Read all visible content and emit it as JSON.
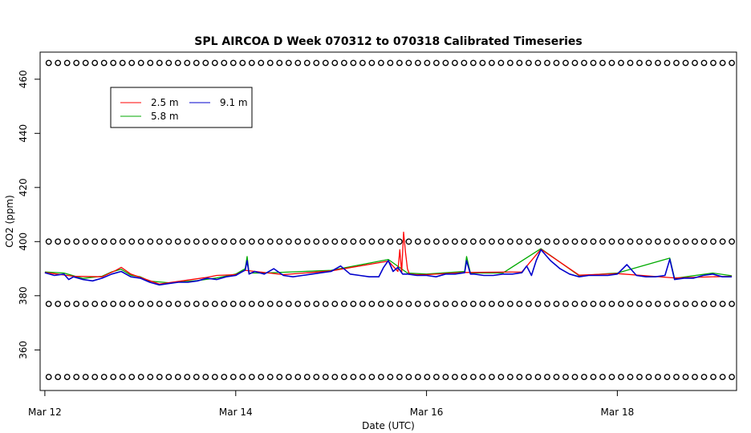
{
  "chart_data": {
    "type": "line",
    "title": "SPL AIRCOA D  Week 070312 to 070318  Calibrated Timeseries",
    "xlabel": "Date (UTC)",
    "ylabel": "CO2 (ppm)",
    "x_unit": "days",
    "xlim": [
      -0.05,
      7.25
    ],
    "ylim": [
      345,
      470
    ],
    "x_ticks": [
      {
        "value": 0,
        "label": "Mar 12"
      },
      {
        "value": 2,
        "label": "Mar 14"
      },
      {
        "value": 4,
        "label": "Mar 16"
      },
      {
        "value": 6,
        "label": "Mar 18"
      }
    ],
    "y_ticks": [
      {
        "value": 360,
        "label": "360"
      },
      {
        "value": 380,
        "label": "380"
      },
      {
        "value": 400,
        "label": "400"
      },
      {
        "value": 420,
        "label": "420"
      },
      {
        "value": 440,
        "label": "440"
      },
      {
        "value": 460,
        "label": "460"
      }
    ],
    "legend": {
      "position": "top-left",
      "entries": [
        {
          "label": "2.5 m",
          "color": "#ff0000"
        },
        {
          "label": "5.8 m",
          "color": "#00aa00"
        },
        {
          "label": "9.1 m",
          "color": "#0000cc"
        }
      ]
    },
    "reference_markers": {
      "marker": "open-circle",
      "levels": [
        350,
        377,
        400,
        466
      ],
      "x_start": 0.04,
      "x_end": 7.2,
      "count": 75
    },
    "series": [
      {
        "name": "9.1 m",
        "color": "#0000cc",
        "x": [
          0.0,
          0.1,
          0.2,
          0.25,
          0.3,
          0.4,
          0.5,
          0.6,
          0.7,
          0.8,
          0.9,
          1.0,
          1.1,
          1.2,
          1.3,
          1.4,
          1.5,
          1.6,
          1.7,
          1.8,
          1.9,
          2.0,
          2.05,
          2.1,
          2.12,
          2.14,
          2.2,
          2.3,
          2.4,
          2.5,
          2.6,
          2.7,
          2.8,
          2.9,
          3.0,
          3.1,
          3.2,
          3.3,
          3.4,
          3.5,
          3.55,
          3.6,
          3.65,
          3.7,
          3.75,
          3.8,
          3.9,
          4.0,
          4.1,
          4.2,
          4.3,
          4.4,
          4.42,
          4.46,
          4.5,
          4.6,
          4.7,
          4.8,
          4.9,
          5.0,
          5.05,
          5.1,
          5.15,
          5.2,
          5.3,
          5.4,
          5.5,
          5.6,
          5.7,
          5.8,
          5.9,
          6.0,
          6.1,
          6.2,
          6.3,
          6.4,
          6.5,
          6.55,
          6.6,
          6.7,
          6.8,
          6.9,
          7.0,
          7.1,
          7.2
        ],
        "values": [
          388.5,
          387.5,
          388.0,
          386.0,
          387.0,
          386.0,
          385.5,
          386.5,
          388.0,
          389.0,
          387.0,
          386.5,
          385.0,
          384.0,
          384.5,
          385.0,
          385.0,
          385.5,
          386.5,
          386.0,
          387.0,
          387.5,
          388.5,
          389.5,
          393.0,
          388.0,
          389.0,
          388.0,
          390.0,
          387.5,
          387.0,
          387.5,
          388.0,
          388.5,
          389.0,
          391.0,
          388.0,
          387.5,
          387.0,
          387.0,
          390.5,
          393.0,
          389.0,
          390.5,
          388.0,
          388.0,
          387.5,
          387.5,
          387.0,
          388.0,
          388.0,
          388.5,
          393.0,
          388.0,
          388.0,
          387.5,
          387.5,
          388.0,
          388.0,
          388.5,
          391.0,
          387.5,
          393.0,
          397.0,
          393.0,
          390.0,
          388.0,
          387.0,
          387.5,
          387.5,
          387.5,
          388.0,
          391.5,
          387.5,
          387.0,
          387.0,
          387.5,
          393.5,
          386.0,
          386.5,
          386.5,
          387.5,
          388.0,
          387.0,
          387.0
        ]
      },
      {
        "name": "5.8 m",
        "color": "#00aa00",
        "x": [
          0.0,
          0.2,
          0.4,
          0.6,
          0.7,
          0.8,
          0.9,
          1.0,
          1.1,
          1.3,
          1.6,
          1.8,
          2.0,
          2.1,
          2.12,
          2.14,
          2.3,
          3.0,
          3.6,
          3.8,
          4.0,
          4.4,
          4.42,
          4.46,
          4.8,
          5.2,
          5.6,
          6.0,
          6.55,
          6.6,
          7.0,
          7.2
        ],
        "values": [
          388.8,
          388.4,
          386.4,
          387.2,
          388.8,
          389.8,
          387.6,
          387.0,
          385.4,
          384.8,
          385.6,
          386.6,
          388.0,
          390.0,
          394.5,
          388.4,
          388.4,
          389.4,
          393.4,
          388.4,
          388.0,
          389.0,
          394.5,
          388.4,
          388.4,
          397.4,
          387.4,
          388.4,
          393.9,
          386.4,
          388.4,
          387.4
        ]
      },
      {
        "name": "2.5 m",
        "color": "#ff0000",
        "x": [
          0.0,
          0.3,
          0.6,
          0.75,
          0.8,
          0.9,
          1.2,
          1.7,
          1.8,
          2.0,
          2.1,
          2.5,
          3.0,
          3.6,
          3.7,
          3.72,
          3.74,
          3.76,
          3.78,
          3.8,
          3.82,
          3.9,
          4.0,
          4.4,
          5.0,
          5.2,
          5.6,
          6.0,
          6.6,
          7.2
        ],
        "values": [
          388.6,
          387.2,
          387.0,
          389.5,
          390.5,
          388.0,
          384.3,
          386.8,
          387.5,
          387.8,
          389.4,
          387.8,
          389.2,
          392.8,
          389.0,
          397.0,
          388.5,
          403.5,
          396.0,
          390.0,
          388.0,
          387.8,
          387.8,
          388.6,
          388.8,
          397.2,
          387.6,
          388.2,
          386.6,
          387.2
        ]
      }
    ]
  }
}
